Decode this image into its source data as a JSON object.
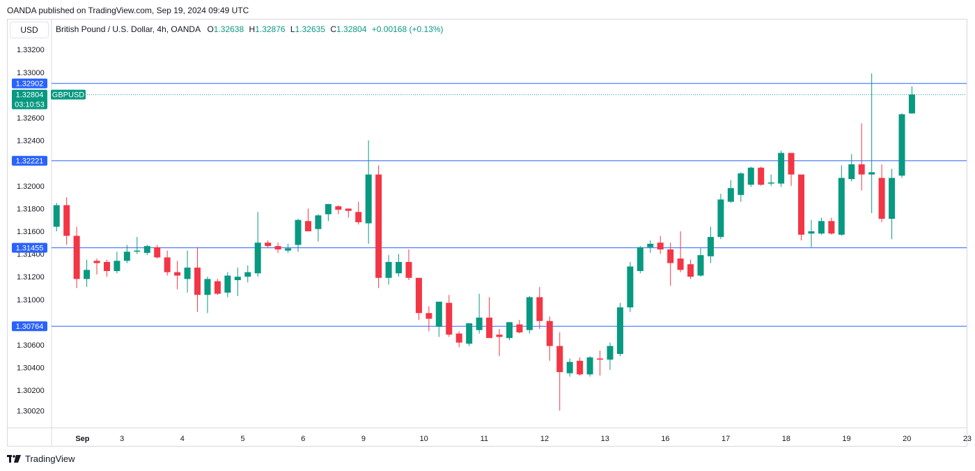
{
  "header": {
    "published": "OANDA published on TradingView.com, Sep 19, 2024 09:49 UTC",
    "currency": "USD"
  },
  "legend": {
    "symbol": "British Pound / U.S. Dollar, 4h, OANDA",
    "o_label": "O",
    "o_value": "1.32638",
    "h_label": "H",
    "h_value": "1.32876",
    "l_label": "L",
    "l_value": "1.32635",
    "c_label": "C",
    "c_value": "1.32804",
    "change": "+0.00168 (+0.13%)"
  },
  "footer": {
    "brand": "TradingView"
  },
  "colors": {
    "up": "#089981",
    "down": "#f23645",
    "level": "#2962ff",
    "grid": "#f0f3fa",
    "axis": "#131722"
  },
  "chart_data": {
    "type": "candlestick",
    "ylim": [
      1.2995,
      1.3345
    ],
    "y_ticks": [
      "1.33200",
      "1.33000",
      "1.32600",
      "1.32400",
      "1.32000",
      "1.31800",
      "1.31600",
      "1.31400",
      "1.31200",
      "1.31000",
      "1.30600",
      "1.30400",
      "1.30200",
      "1.30020"
    ],
    "x_ticks": [
      {
        "label": "Sep",
        "x": 1
      },
      {
        "label": "3",
        "x": 7
      },
      {
        "label": "4",
        "x": 13
      },
      {
        "label": "5",
        "x": 19
      },
      {
        "label": "6",
        "x": 25
      },
      {
        "label": "9",
        "x": 31
      },
      {
        "label": "10",
        "x": 37
      },
      {
        "label": "11",
        "x": 43
      },
      {
        "label": "12",
        "x": 49
      },
      {
        "label": "13",
        "x": 55
      },
      {
        "label": "16",
        "x": 61
      },
      {
        "label": "17",
        "x": 67
      },
      {
        "label": "18",
        "x": 73
      },
      {
        "label": "19",
        "x": 79
      },
      {
        "label": "20",
        "x": 85
      },
      {
        "label": "23",
        "x": 91
      }
    ],
    "levels": [
      "1.32902",
      "1.32221",
      "1.31455",
      "1.30764"
    ],
    "current_price": "1.32804",
    "current_symbol": "GBPUSD",
    "countdown": "03:10:53",
    "candles": [
      {
        "o": 1.3164,
        "h": 1.3185,
        "l": 1.316,
        "c": 1.3183
      },
      {
        "o": 1.3183,
        "h": 1.319,
        "l": 1.3148,
        "c": 1.3156
      },
      {
        "o": 1.3156,
        "h": 1.3164,
        "l": 1.311,
        "c": 1.3118
      },
      {
        "o": 1.3118,
        "h": 1.3135,
        "l": 1.3111,
        "c": 1.3126
      },
      {
        "o": 1.3134,
        "h": 1.3136,
        "l": 1.3122,
        "c": 1.3132
      },
      {
        "o": 1.3133,
        "h": 1.3135,
        "l": 1.312,
        "c": 1.3125
      },
      {
        "o": 1.3125,
        "h": 1.3142,
        "l": 1.3123,
        "c": 1.3134
      },
      {
        "o": 1.3134,
        "h": 1.3148,
        "l": 1.3132,
        "c": 1.3142
      },
      {
        "o": 1.3142,
        "h": 1.3155,
        "l": 1.314,
        "c": 1.3143
      },
      {
        "o": 1.3141,
        "h": 1.3148,
        "l": 1.3139,
        "c": 1.3147
      },
      {
        "o": 1.3146,
        "h": 1.3148,
        "l": 1.3136,
        "c": 1.3137
      },
      {
        "o": 1.3137,
        "h": 1.3143,
        "l": 1.3121,
        "c": 1.3124
      },
      {
        "o": 1.3124,
        "h": 1.3134,
        "l": 1.3109,
        "c": 1.3121
      },
      {
        "o": 1.3118,
        "h": 1.3143,
        "l": 1.3106,
        "c": 1.3128
      },
      {
        "o": 1.3128,
        "h": 1.3146,
        "l": 1.3089,
        "c": 1.3104
      },
      {
        "o": 1.3104,
        "h": 1.312,
        "l": 1.3088,
        "c": 1.3118
      },
      {
        "o": 1.3116,
        "h": 1.3118,
        "l": 1.3104,
        "c": 1.3105
      },
      {
        "o": 1.3106,
        "h": 1.3124,
        "l": 1.3102,
        "c": 1.3121
      },
      {
        "o": 1.3117,
        "h": 1.3128,
        "l": 1.3103,
        "c": 1.312
      },
      {
        "o": 1.312,
        "h": 1.313,
        "l": 1.3115,
        "c": 1.3124
      },
      {
        "o": 1.3123,
        "h": 1.3177,
        "l": 1.312,
        "c": 1.315
      },
      {
        "o": 1.315,
        "h": 1.3152,
        "l": 1.3145,
        "c": 1.3147
      },
      {
        "o": 1.3147,
        "h": 1.315,
        "l": 1.3141,
        "c": 1.3144
      },
      {
        "o": 1.3143,
        "h": 1.3149,
        "l": 1.3141,
        "c": 1.3145
      },
      {
        "o": 1.3148,
        "h": 1.3171,
        "l": 1.3142,
        "c": 1.317
      },
      {
        "o": 1.3169,
        "h": 1.318,
        "l": 1.316,
        "c": 1.316
      },
      {
        "o": 1.3162,
        "h": 1.3175,
        "l": 1.3151,
        "c": 1.3174
      },
      {
        "o": 1.3175,
        "h": 1.3184,
        "l": 1.3169,
        "c": 1.3184
      },
      {
        "o": 1.3182,
        "h": 1.3183,
        "l": 1.3175,
        "c": 1.3179
      },
      {
        "o": 1.318,
        "h": 1.318,
        "l": 1.3172,
        "c": 1.3178
      },
      {
        "o": 1.3177,
        "h": 1.3186,
        "l": 1.3166,
        "c": 1.3168
      },
      {
        "o": 1.3167,
        "h": 1.324,
        "l": 1.3149,
        "c": 1.321
      },
      {
        "o": 1.321,
        "h": 1.3218,
        "l": 1.311,
        "c": 1.3119
      },
      {
        "o": 1.3119,
        "h": 1.3139,
        "l": 1.3113,
        "c": 1.3133
      },
      {
        "o": 1.3123,
        "h": 1.314,
        "l": 1.312,
        "c": 1.3133
      },
      {
        "o": 1.3133,
        "h": 1.3144,
        "l": 1.3117,
        "c": 1.3119
      },
      {
        "o": 1.3119,
        "h": 1.3119,
        "l": 1.3082,
        "c": 1.3088
      },
      {
        "o": 1.3088,
        "h": 1.3094,
        "l": 1.3072,
        "c": 1.3083
      },
      {
        "o": 1.3076,
        "h": 1.3098,
        "l": 1.3067,
        "c": 1.3098
      },
      {
        "o": 1.3097,
        "h": 1.3104,
        "l": 1.3067,
        "c": 1.3069
      },
      {
        "o": 1.307,
        "h": 1.3072,
        "l": 1.3058,
        "c": 1.3062
      },
      {
        "o": 1.3061,
        "h": 1.3078,
        "l": 1.3059,
        "c": 1.3079
      },
      {
        "o": 1.3073,
        "h": 1.3105,
        "l": 1.307,
        "c": 1.3084
      },
      {
        "o": 1.3084,
        "h": 1.3102,
        "l": 1.3066,
        "c": 1.3066
      },
      {
        "o": 1.3069,
        "h": 1.3074,
        "l": 1.305,
        "c": 1.3067
      },
      {
        "o": 1.3066,
        "h": 1.308,
        "l": 1.3064,
        "c": 1.308
      },
      {
        "o": 1.3078,
        "h": 1.3082,
        "l": 1.307,
        "c": 1.3071
      },
      {
        "o": 1.3073,
        "h": 1.3103,
        "l": 1.307,
        "c": 1.3102
      },
      {
        "o": 1.3102,
        "h": 1.3111,
        "l": 1.3074,
        "c": 1.3081
      },
      {
        "o": 1.3081,
        "h": 1.3085,
        "l": 1.3046,
        "c": 1.3059
      },
      {
        "o": 1.3059,
        "h": 1.3071,
        "l": 1.3002,
        "c": 1.3036
      },
      {
        "o": 1.3035,
        "h": 1.3048,
        "l": 1.3032,
        "c": 1.3045
      },
      {
        "o": 1.3046,
        "h": 1.3049,
        "l": 1.3033,
        "c": 1.3034
      },
      {
        "o": 1.3034,
        "h": 1.305,
        "l": 1.3032,
        "c": 1.3049
      },
      {
        "o": 1.3048,
        "h": 1.3055,
        "l": 1.3033,
        "c": 1.3047
      },
      {
        "o": 1.3047,
        "h": 1.3062,
        "l": 1.3038,
        "c": 1.3059
      },
      {
        "o": 1.3052,
        "h": 1.3097,
        "l": 1.305,
        "c": 1.3093
      },
      {
        "o": 1.3093,
        "h": 1.3133,
        "l": 1.3089,
        "c": 1.3129
      },
      {
        "o": 1.3125,
        "h": 1.3147,
        "l": 1.3123,
        "c": 1.3146
      },
      {
        "o": 1.3146,
        "h": 1.3152,
        "l": 1.3141,
        "c": 1.3149
      },
      {
        "o": 1.315,
        "h": 1.3156,
        "l": 1.314,
        "c": 1.3144
      },
      {
        "o": 1.3144,
        "h": 1.315,
        "l": 1.3112,
        "c": 1.3132
      },
      {
        "o": 1.3136,
        "h": 1.316,
        "l": 1.3124,
        "c": 1.3126
      },
      {
        "o": 1.3131,
        "h": 1.3135,
        "l": 1.3118,
        "c": 1.312
      },
      {
        "o": 1.3121,
        "h": 1.3145,
        "l": 1.312,
        "c": 1.3139
      },
      {
        "o": 1.3138,
        "h": 1.3164,
        "l": 1.3132,
        "c": 1.3155
      },
      {
        "o": 1.3155,
        "h": 1.3193,
        "l": 1.3153,
        "c": 1.3188
      },
      {
        "o": 1.3186,
        "h": 1.3205,
        "l": 1.3185,
        "c": 1.3198
      },
      {
        "o": 1.3192,
        "h": 1.3212,
        "l": 1.3186,
        "c": 1.3211
      },
      {
        "o": 1.3201,
        "h": 1.3217,
        "l": 1.3199,
        "c": 1.3216
      },
      {
        "o": 1.3216,
        "h": 1.3217,
        "l": 1.32,
        "c": 1.3201
      },
      {
        "o": 1.3202,
        "h": 1.321,
        "l": 1.32,
        "c": 1.3203
      },
      {
        "o": 1.3202,
        "h": 1.3231,
        "l": 1.3199,
        "c": 1.3229
      },
      {
        "o": 1.3229,
        "h": 1.3229,
        "l": 1.32,
        "c": 1.321
      },
      {
        "o": 1.321,
        "h": 1.321,
        "l": 1.3152,
        "c": 1.3157
      },
      {
        "o": 1.3158,
        "h": 1.317,
        "l": 1.3146,
        "c": 1.316
      },
      {
        "o": 1.3158,
        "h": 1.3172,
        "l": 1.3157,
        "c": 1.3169
      },
      {
        "o": 1.3169,
        "h": 1.3172,
        "l": 1.3157,
        "c": 1.3158
      },
      {
        "o": 1.3157,
        "h": 1.3218,
        "l": 1.3156,
        "c": 1.3207
      },
      {
        "o": 1.3206,
        "h": 1.3228,
        "l": 1.3204,
        "c": 1.3219
      },
      {
        "o": 1.3219,
        "h": 1.3255,
        "l": 1.3196,
        "c": 1.321
      },
      {
        "o": 1.321,
        "h": 1.3299,
        "l": 1.3176,
        "c": 1.3212
      },
      {
        "o": 1.3207,
        "h": 1.3219,
        "l": 1.3168,
        "c": 1.3171
      },
      {
        "o": 1.3171,
        "h": 1.3215,
        "l": 1.3153,
        "c": 1.3207
      },
      {
        "o": 1.3209,
        "h": 1.3264,
        "l": 1.3207,
        "c": 1.3263
      },
      {
        "o": 1.32638,
        "h": 1.32876,
        "l": 1.32635,
        "c": 1.32804
      }
    ]
  }
}
